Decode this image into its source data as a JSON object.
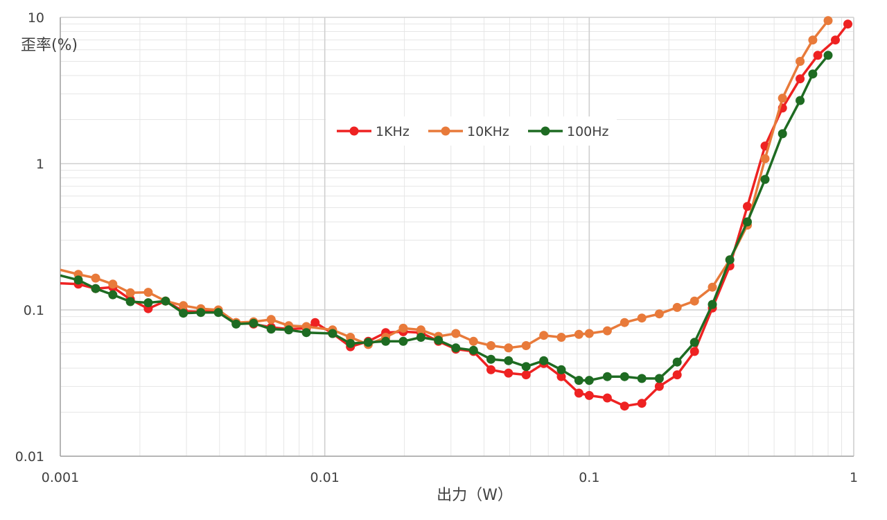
{
  "chart_data": {
    "type": "line",
    "title": "",
    "xlabel": "出力（W）",
    "ylabel": "歪率(%)",
    "x_scale": "log",
    "y_scale": "log",
    "xlim": [
      0.001,
      1
    ],
    "ylim": [
      0.01,
      10
    ],
    "x_ticks": [
      "0.001",
      "0.01",
      "0.1",
      "1"
    ],
    "y_ticks": [
      "0.01",
      "0.1",
      "1",
      "10"
    ],
    "grid": true,
    "legend_position": "upper-middle",
    "series": [
      {
        "name": "1KHz",
        "color": "#ee2222",
        "x": [
          0.001,
          0.00117,
          0.00136,
          0.00158,
          0.00184,
          0.00215,
          0.0025,
          0.00292,
          0.0034,
          0.00396,
          0.00462,
          0.00538,
          0.00627,
          0.00731,
          0.00852,
          0.0092,
          0.0107,
          0.0125,
          0.0146,
          0.017,
          0.0198,
          0.0231,
          0.0269,
          0.0313,
          0.0365,
          0.0425,
          0.0495,
          0.0577,
          0.0673,
          0.0784,
          0.0914,
          0.1,
          0.117,
          0.136,
          0.158,
          0.184,
          0.215,
          0.25,
          0.292,
          0.34,
          0.396,
          0.462,
          0.538,
          0.627,
          0.731,
          0.852,
          0.95
        ],
        "y": [
          0.152,
          0.15,
          0.14,
          0.143,
          0.118,
          0.102,
          0.115,
          0.098,
          0.097,
          0.099,
          0.082,
          0.08,
          0.076,
          0.074,
          0.075,
          0.082,
          0.069,
          0.056,
          0.061,
          0.07,
          0.071,
          0.07,
          0.061,
          0.054,
          0.052,
          0.039,
          0.037,
          0.036,
          0.043,
          0.035,
          0.027,
          0.026,
          0.025,
          0.022,
          0.023,
          0.03,
          0.036,
          0.052,
          0.103,
          0.2,
          0.51,
          1.32,
          2.4,
          3.8,
          5.5,
          7.0,
          9.0
        ]
      },
      {
        "name": "10KHz",
        "color": "#e87a3a",
        "x": [
          0.001,
          0.00117,
          0.00136,
          0.00158,
          0.00184,
          0.00215,
          0.0025,
          0.00292,
          0.0034,
          0.00396,
          0.00462,
          0.00538,
          0.00627,
          0.00731,
          0.00852,
          0.0107,
          0.0125,
          0.0146,
          0.017,
          0.0198,
          0.0231,
          0.0269,
          0.0313,
          0.0365,
          0.0425,
          0.0495,
          0.0577,
          0.0673,
          0.0784,
          0.0914,
          0.1,
          0.117,
          0.136,
          0.158,
          0.184,
          0.215,
          0.25,
          0.292,
          0.34,
          0.396,
          0.462,
          0.538,
          0.627,
          0.7,
          0.8
        ],
        "y": [
          0.188,
          0.175,
          0.165,
          0.15,
          0.131,
          0.132,
          0.115,
          0.107,
          0.102,
          0.1,
          0.082,
          0.083,
          0.086,
          0.078,
          0.077,
          0.073,
          0.065,
          0.058,
          0.065,
          0.075,
          0.073,
          0.066,
          0.069,
          0.061,
          0.057,
          0.055,
          0.057,
          0.067,
          0.065,
          0.068,
          0.069,
          0.072,
          0.082,
          0.088,
          0.094,
          0.104,
          0.115,
          0.143,
          0.22,
          0.38,
          1.08,
          2.8,
          5.0,
          7.0,
          9.5
        ]
      },
      {
        "name": "100Hz",
        "color": "#1e6b22",
        "x": [
          0.001,
          0.00117,
          0.00136,
          0.00158,
          0.00184,
          0.00215,
          0.0025,
          0.00292,
          0.0034,
          0.00396,
          0.00462,
          0.00538,
          0.00627,
          0.00731,
          0.00852,
          0.0107,
          0.0125,
          0.0146,
          0.017,
          0.0198,
          0.0231,
          0.0269,
          0.0313,
          0.0365,
          0.0425,
          0.0495,
          0.0577,
          0.0673,
          0.0784,
          0.0914,
          0.1,
          0.117,
          0.136,
          0.158,
          0.184,
          0.215,
          0.25,
          0.292,
          0.34,
          0.396,
          0.462,
          0.538,
          0.627,
          0.7,
          0.8
        ],
        "y": [
          0.172,
          0.16,
          0.14,
          0.127,
          0.114,
          0.112,
          0.115,
          0.095,
          0.096,
          0.096,
          0.08,
          0.081,
          0.074,
          0.073,
          0.07,
          0.069,
          0.059,
          0.06,
          0.061,
          0.061,
          0.065,
          0.062,
          0.055,
          0.053,
          0.046,
          0.045,
          0.041,
          0.045,
          0.039,
          0.033,
          0.033,
          0.035,
          0.035,
          0.034,
          0.034,
          0.044,
          0.06,
          0.109,
          0.22,
          0.4,
          0.78,
          1.6,
          2.7,
          4.1,
          5.5
        ]
      }
    ]
  }
}
